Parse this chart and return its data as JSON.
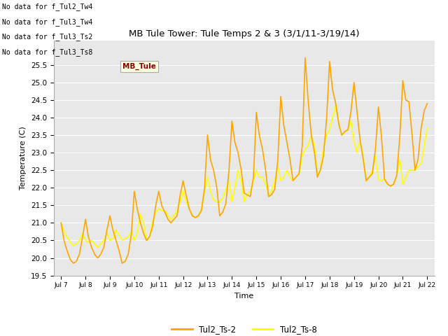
{
  "title": "MB Tule Tower: Tule Temps 2 & 3 (3/1/11-3/19/14)",
  "xlabel": "Time",
  "ylabel": "Temperature (C)",
  "ylim": [
    19.5,
    26.2
  ],
  "xlim_min": 6.7,
  "xlim_max": 22.3,
  "xtick_labels": [
    "Jul 7",
    "Jul 8",
    "Jul 9",
    "Jul 10",
    "Jul 11",
    "Jul 12",
    "Jul 13",
    "Jul 14",
    "Jul 15",
    "Jul 16",
    "Jul 17",
    "Jul 18",
    "Jul 19",
    "Jul 20",
    "Jul 21",
    "Jul 22"
  ],
  "xtick_positions": [
    7,
    8,
    9,
    10,
    11,
    12,
    13,
    14,
    15,
    16,
    17,
    18,
    19,
    20,
    21,
    22
  ],
  "ytick_labels": [
    "19.5",
    "20.0",
    "20.5",
    "21.0",
    "21.5",
    "22.0",
    "22.5",
    "23.0",
    "23.5",
    "24.0",
    "24.5",
    "25.0",
    "25.5"
  ],
  "ytick_positions": [
    19.5,
    20.0,
    20.5,
    21.0,
    21.5,
    22.0,
    22.5,
    23.0,
    23.5,
    24.0,
    24.5,
    25.0,
    25.5
  ],
  "color_ts2": "#FFA500",
  "color_ts8": "#FFFF00",
  "bg_color": "#E8E8E8",
  "legend_labels": [
    "Tul2_Ts-2",
    "Tul2_Ts-8"
  ],
  "no_data_texts": [
    "No data for f_Tul2_Tw4",
    "No data for f_Tul3_Tw4",
    "No data for f_Tul3_Ts2",
    "No data for f_Tul3_Ts8"
  ],
  "tooltip_text": "MB_Tule",
  "ts2_x": [
    7.0,
    7.12,
    7.25,
    7.38,
    7.5,
    7.62,
    7.75,
    7.88,
    8.0,
    8.12,
    8.25,
    8.38,
    8.5,
    8.62,
    8.75,
    8.88,
    9.0,
    9.12,
    9.25,
    9.38,
    9.5,
    9.62,
    9.75,
    9.88,
    10.0,
    10.12,
    10.25,
    10.38,
    10.5,
    10.62,
    10.75,
    10.88,
    11.0,
    11.12,
    11.25,
    11.38,
    11.5,
    11.62,
    11.75,
    11.88,
    12.0,
    12.12,
    12.25,
    12.38,
    12.5,
    12.62,
    12.75,
    12.88,
    13.0,
    13.12,
    13.25,
    13.38,
    13.5,
    13.62,
    13.75,
    13.88,
    14.0,
    14.12,
    14.25,
    14.38,
    14.5,
    14.62,
    14.75,
    14.88,
    15.0,
    15.12,
    15.25,
    15.38,
    15.5,
    15.62,
    15.75,
    15.88,
    16.0,
    16.12,
    16.25,
    16.38,
    16.5,
    16.62,
    16.75,
    16.88,
    17.0,
    17.12,
    17.25,
    17.38,
    17.5,
    17.62,
    17.75,
    17.88,
    18.0,
    18.12,
    18.25,
    18.38,
    18.5,
    18.62,
    18.75,
    18.88,
    19.0,
    19.12,
    19.25,
    19.38,
    19.5,
    19.62,
    19.75,
    19.88,
    20.0,
    20.12,
    20.25,
    20.38,
    20.5,
    20.62,
    20.75,
    20.88,
    21.0,
    21.12,
    21.25,
    21.38,
    21.5,
    21.62,
    21.75,
    21.88,
    22.0
  ],
  "ts2_y": [
    21.0,
    20.5,
    20.2,
    19.95,
    19.85,
    19.9,
    20.1,
    20.6,
    21.1,
    20.6,
    20.3,
    20.1,
    20.0,
    20.1,
    20.3,
    20.8,
    21.2,
    20.8,
    20.5,
    20.2,
    19.85,
    19.9,
    20.1,
    20.7,
    21.9,
    21.4,
    21.0,
    20.7,
    20.5,
    20.6,
    20.9,
    21.5,
    21.9,
    21.5,
    21.3,
    21.1,
    21.0,
    21.1,
    21.2,
    21.8,
    22.2,
    21.8,
    21.4,
    21.2,
    21.15,
    21.2,
    21.35,
    22.0,
    23.5,
    22.8,
    22.5,
    22.0,
    21.2,
    21.3,
    21.55,
    22.5,
    23.9,
    23.3,
    23.0,
    22.5,
    21.85,
    21.8,
    21.75,
    22.3,
    24.15,
    23.5,
    23.1,
    22.5,
    21.75,
    21.8,
    21.95,
    22.8,
    24.6,
    23.8,
    23.3,
    22.8,
    22.2,
    22.3,
    22.4,
    23.2,
    25.7,
    24.5,
    23.5,
    23.0,
    22.3,
    22.5,
    22.9,
    24.0,
    25.6,
    24.8,
    24.4,
    23.8,
    23.5,
    23.6,
    23.65,
    24.2,
    25.0,
    24.2,
    23.35,
    22.8,
    22.2,
    22.3,
    22.4,
    23.1,
    24.3,
    23.5,
    22.25,
    22.1,
    22.05,
    22.1,
    22.35,
    23.5,
    25.05,
    24.5,
    24.45,
    23.5,
    22.5,
    22.8,
    23.7,
    24.2,
    24.4
  ],
  "ts8_y": [
    21.0,
    20.75,
    20.6,
    20.45,
    20.35,
    20.4,
    20.5,
    20.7,
    20.5,
    20.45,
    20.5,
    20.4,
    20.3,
    20.4,
    20.5,
    20.7,
    20.5,
    20.55,
    20.8,
    20.65,
    20.5,
    20.55,
    20.6,
    20.75,
    20.5,
    20.7,
    21.25,
    21.0,
    20.5,
    20.6,
    21.05,
    21.3,
    21.4,
    21.35,
    21.35,
    21.2,
    21.1,
    21.2,
    21.35,
    21.6,
    21.9,
    21.6,
    21.4,
    21.2,
    21.15,
    21.2,
    21.4,
    21.9,
    22.3,
    21.9,
    21.65,
    21.6,
    21.6,
    21.7,
    21.95,
    22.2,
    21.6,
    22.0,
    22.5,
    22.2,
    21.6,
    21.8,
    21.9,
    22.2,
    22.5,
    22.3,
    22.3,
    22.1,
    21.8,
    21.9,
    22.2,
    22.6,
    22.2,
    22.3,
    22.5,
    22.3,
    22.2,
    22.3,
    22.4,
    22.9,
    23.1,
    23.2,
    23.5,
    23.2,
    22.35,
    22.5,
    23.15,
    23.5,
    23.65,
    24.0,
    24.35,
    23.8,
    23.5,
    23.6,
    23.65,
    23.9,
    23.3,
    23.0,
    23.35,
    22.9,
    22.2,
    22.3,
    22.5,
    22.9,
    22.25,
    22.2,
    22.25,
    22.1,
    22.05,
    22.1,
    22.35,
    22.8,
    22.1,
    22.3,
    22.5,
    22.5,
    22.5,
    22.6,
    22.7,
    23.2,
    23.7
  ]
}
